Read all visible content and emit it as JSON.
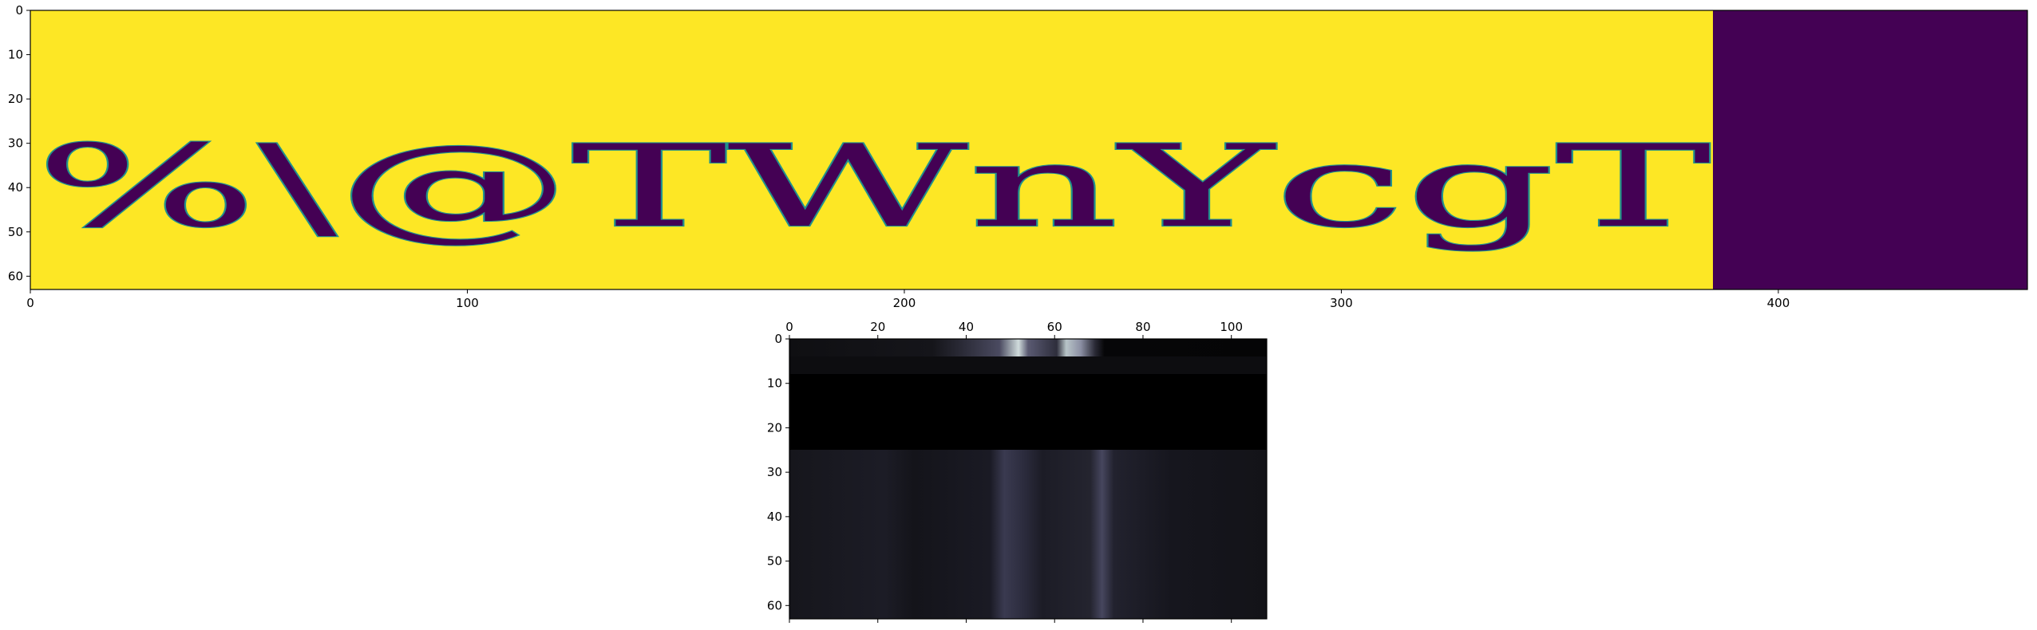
{
  "chart_data": [
    {
      "type": "heatmap",
      "colormap": "viridis",
      "rendered_text": "%\\@TWnYcgT",
      "xlim": [
        0,
        457
      ],
      "ylim": [
        63,
        0
      ],
      "text_region_x": [
        0,
        385
      ],
      "filled_region_x": [
        385,
        457
      ],
      "x_ticks": [
        0,
        100,
        200,
        300,
        400
      ],
      "y_ticks": [
        0,
        10,
        20,
        30,
        40,
        50,
        60
      ],
      "colors": {
        "background": "#fde725",
        "ink": "#440154",
        "edge": "#21918c",
        "padding": "#440154"
      }
    },
    {
      "type": "heatmap",
      "colormap": "bone",
      "xlim": [
        0,
        108
      ],
      "ylim": [
        63,
        0
      ],
      "x_ticks": [
        0,
        20,
        40,
        60,
        80,
        100
      ],
      "y_ticks": [
        0,
        10,
        20,
        30,
        40,
        50,
        60
      ],
      "x_ticks_position": "top",
      "bright_columns": [
        48,
        52,
        54,
        62,
        65,
        70
      ],
      "dark_band_rows": [
        8,
        25
      ]
    }
  ]
}
